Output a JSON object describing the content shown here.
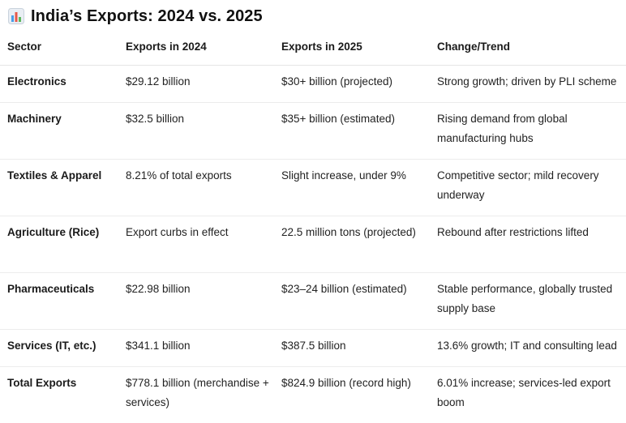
{
  "title": "India’s Exports: 2024 vs. 2025",
  "title_icon": "bar-chart-icon",
  "colors": {
    "icon_bars": [
      "#4a9ee8",
      "#e8584a",
      "#5cb85c"
    ],
    "icon_bg": "#e9eef4"
  },
  "table": {
    "headers": [
      "Sector",
      "Exports in 2024",
      "Exports in 2025",
      "Change/Trend"
    ],
    "rows": [
      {
        "sector": "Electronics",
        "exports_2024": "$29.12 billion",
        "exports_2025": "$30+ billion (projected)",
        "trend": "Strong growth; driven by PLI scheme"
      },
      {
        "sector": "Machinery",
        "exports_2024": "$32.5 billion",
        "exports_2025": "$35+ billion (estimated)",
        "trend": "Rising demand from global manufacturing hubs"
      },
      {
        "sector": "Textiles & Apparel",
        "exports_2024": "8.21% of total exports",
        "exports_2025": "Slight increase, under 9%",
        "trend": "Competitive sector; mild recovery underway"
      },
      {
        "sector": "Agriculture (Rice)",
        "exports_2024": "Export curbs in effect",
        "exports_2025": "22.5 million tons (projected)",
        "trend": "Rebound after restrictions lifted"
      },
      {
        "sector": "Pharmaceuticals",
        "exports_2024": "$22.98 billion",
        "exports_2025": "$23–24 billion (estimated)",
        "trend": "Stable performance, globally trusted supply base"
      },
      {
        "sector": "Services (IT, etc.)",
        "exports_2024": "$341.1 billion",
        "exports_2025": "$387.5 billion",
        "trend": "13.6% growth; IT and consulting lead"
      },
      {
        "sector": "Total Exports",
        "exports_2024": "$778.1 billion (merchandise + services)",
        "exports_2025": "$824.9 billion (record high)",
        "trend": "6.01% increase; services-led export boom"
      }
    ]
  }
}
